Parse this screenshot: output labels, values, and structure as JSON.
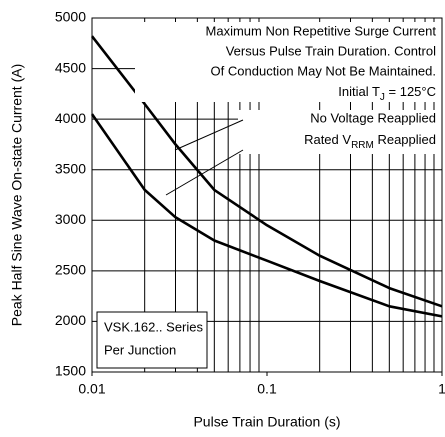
{
  "chart_data": {
    "type": "line",
    "xlabel": "Pulse Train Duration (s)",
    "ylabel": "Peak Half Sine Wave On-state Current (A)",
    "xscale": "log",
    "xlim": [
      0.01,
      1
    ],
    "xticks": [
      0.01,
      0.1,
      1
    ],
    "xgrid": [
      0.02,
      0.03,
      0.04,
      0.05,
      0.06,
      0.07,
      0.08,
      0.09,
      0.2,
      0.3,
      0.4,
      0.5,
      0.6,
      0.7,
      0.8,
      0.9
    ],
    "ylim": [
      1500,
      5000
    ],
    "yticks": [
      1500,
      2000,
      2500,
      3000,
      3500,
      4000,
      4500,
      5000
    ],
    "grid": true,
    "x": [
      0.01,
      0.02,
      0.03,
      0.05,
      0.1,
      0.2,
      0.5,
      1
    ],
    "series": [
      {
        "color": "#000000",
        "values": [
          4820,
          4150,
          3750,
          3300,
          2950,
          2650,
          2330,
          2150
        ]
      },
      {
        "color": "#000000",
        "values": [
          4050,
          3300,
          3030,
          2800,
          2600,
          2400,
          2150,
          2050
        ]
      }
    ],
    "annotations": [
      "Maximum Non Repetitive Surge Current",
      "Versus Pulse Train Duration. Control",
      "Of Conduction May Not Be Maintained."
    ],
    "temp_note": [
      "Initial T",
      "J",
      " = 125°C"
    ],
    "no_voltage": "No Voltage Reapplied",
    "rated": [
      "Rated V",
      "RRM",
      " Reapplied"
    ],
    "series_note": [
      "VSK.162.. Series",
      "Per Junction"
    ]
  }
}
